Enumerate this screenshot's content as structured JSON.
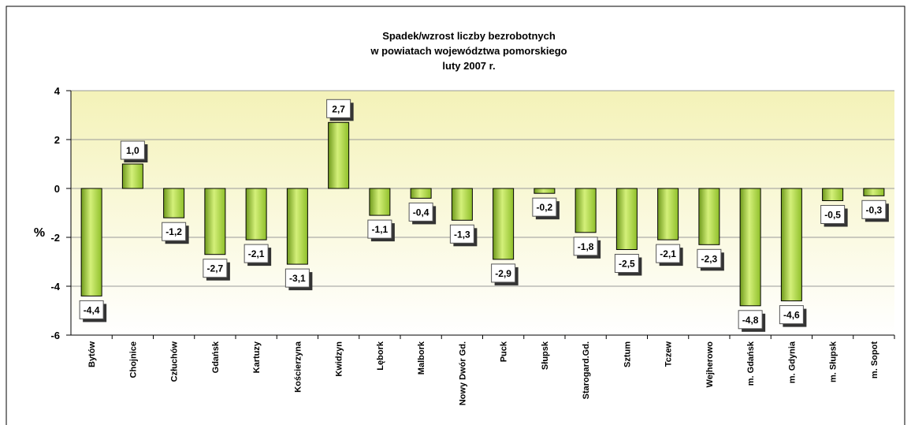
{
  "chart_data": {
    "type": "bar",
    "title": [
      "Spadek/wzrost liczby bezrobotnych",
      "w powiatach województwa pomorskiego",
      "luty 2007 r."
    ],
    "y_label": "%",
    "categories": [
      "Bytów",
      "Chojnice",
      "Człuchów",
      "Gdańsk",
      "Kartuzy",
      "Kościerzyna",
      "Kwidzyn",
      "Lębork",
      "Malbork",
      "Nowy Dwór Gd.",
      "Puck",
      "Słupsk",
      "Starogard.Gd.",
      "Sztum",
      "Tczew",
      "Wejherowo",
      "m. Gdańsk",
      "m. Gdynia",
      "m. Słupsk",
      "m. Sopot"
    ],
    "values": [
      -4.4,
      1.0,
      -1.2,
      -2.7,
      -2.1,
      -3.1,
      2.7,
      -1.1,
      -0.4,
      -1.3,
      -2.9,
      -0.2,
      -1.8,
      -2.5,
      -2.1,
      -2.3,
      -4.8,
      -4.6,
      -0.5,
      -0.3
    ],
    "value_labels": [
      "-4,4",
      "1,0",
      "-1,2",
      "-2,7",
      "-2,1",
      "-3,1",
      "2,7",
      "-1,1",
      "-0,4",
      "-1,3",
      "-2,9",
      "-0,2",
      "-1,8",
      "-2,5",
      "-2,1",
      "-2,3",
      "-4,8",
      "-4,6",
      "-0,5",
      "-0,3"
    ],
    "color": "#a8d840",
    "ylim": [
      -6,
      4
    ],
    "yticks": [
      4,
      2,
      0,
      -2,
      -4,
      -6
    ],
    "grid": true
  }
}
